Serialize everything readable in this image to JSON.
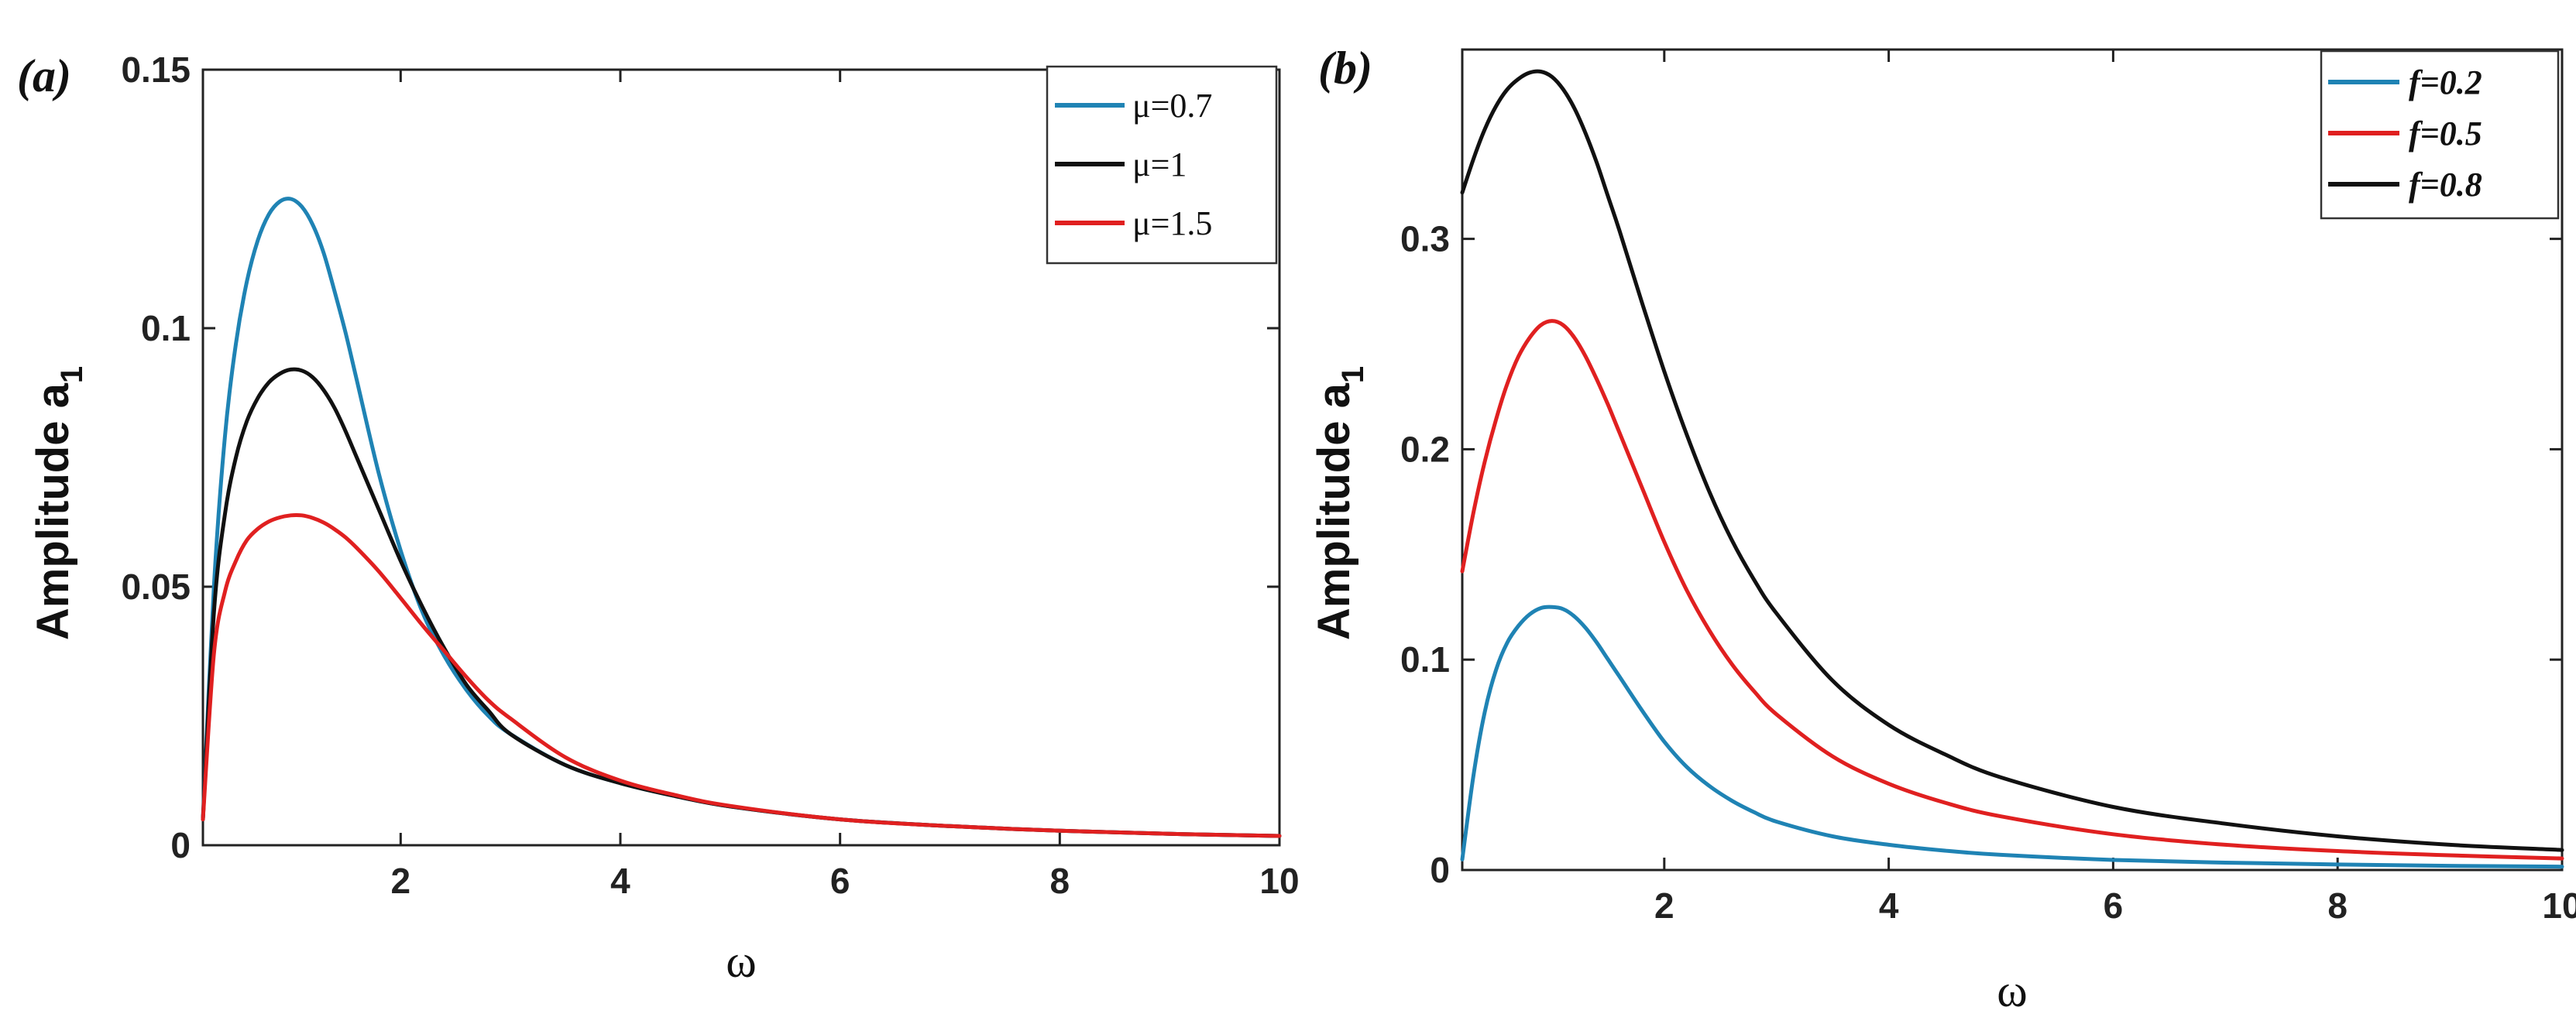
{
  "chart_data": [
    {
      "type": "line",
      "panel_label": "(a)",
      "xlabel": "ω",
      "ylabel": "Amplitude a",
      "ylabel_sub": "1",
      "xlim": [
        0.2,
        10
      ],
      "ylim": [
        0,
        0.15
      ],
      "xticks": [
        2,
        4,
        6,
        8,
        10
      ],
      "xtick_labels": [
        "2",
        "4",
        "6",
        "8",
        "10"
      ],
      "yticks": [
        0,
        0.05,
        0.1,
        0.15
      ],
      "ytick_labels": [
        "0",
        "0.05",
        "0.1",
        "0.15"
      ],
      "legend_position": "top-right",
      "x": [
        0.2,
        0.3,
        0.4,
        0.5,
        0.6,
        0.7,
        0.8,
        0.9,
        1.0,
        1.1,
        1.2,
        1.3,
        1.4,
        1.5,
        1.6,
        1.8,
        2.0,
        2.2,
        2.4,
        2.6,
        2.8,
        3.0,
        3.5,
        4.0,
        4.5,
        5.0,
        6.0,
        7.0,
        8.0,
        9.0,
        10.0
      ],
      "series": [
        {
          "name": "μ=0.7",
          "color": "#1f83b4",
          "values": [
            0.005,
            0.05,
            0.079,
            0.097,
            0.109,
            0.117,
            0.122,
            0.1245,
            0.125,
            0.1235,
            0.12,
            0.1145,
            0.107,
            0.099,
            0.09,
            0.072,
            0.057,
            0.045,
            0.0365,
            0.03,
            0.025,
            0.0215,
            0.0155,
            0.012,
            0.0095,
            0.0075,
            0.005,
            0.0037,
            0.0028,
            0.0022,
            0.0018
          ]
        },
        {
          "name": "μ=1",
          "color": "#111111",
          "values": [
            0.005,
            0.045,
            0.064,
            0.075,
            0.082,
            0.0865,
            0.0895,
            0.0912,
            0.092,
            0.0918,
            0.0905,
            0.088,
            0.0845,
            0.08,
            0.075,
            0.065,
            0.055,
            0.046,
            0.038,
            0.031,
            0.026,
            0.0215,
            0.0155,
            0.012,
            0.0095,
            0.0075,
            0.005,
            0.0037,
            0.0028,
            0.0022,
            0.0018
          ]
        },
        {
          "name": "μ=1.5",
          "color": "#e02020",
          "values": [
            0.005,
            0.037,
            0.049,
            0.055,
            0.059,
            0.0612,
            0.0626,
            0.0634,
            0.0638,
            0.0638,
            0.0633,
            0.0624,
            0.0611,
            0.0595,
            0.0575,
            0.053,
            0.0478,
            0.0425,
            0.0375,
            0.0325,
            0.028,
            0.0245,
            0.017,
            0.0125,
            0.0097,
            0.0076,
            0.005,
            0.0037,
            0.0028,
            0.0022,
            0.0018
          ]
        }
      ]
    },
    {
      "type": "line",
      "panel_label": "(b)",
      "xlabel": "ω",
      "ylabel": "Amplitude a",
      "ylabel_sub": "1",
      "xlim": [
        0.2,
        10
      ],
      "ylim": [
        0,
        0.39
      ],
      "xticks": [
        2,
        4,
        6,
        8,
        10
      ],
      "xtick_labels": [
        "2",
        "4",
        "6",
        "8",
        "10"
      ],
      "yticks": [
        0,
        0.1,
        0.2,
        0.3
      ],
      "ytick_labels": [
        "0",
        "0.1",
        "0.2",
        "0.3"
      ],
      "legend_position": "top-right",
      "x": [
        0.2,
        0.3,
        0.4,
        0.5,
        0.6,
        0.7,
        0.8,
        0.9,
        1.0,
        1.1,
        1.2,
        1.3,
        1.4,
        1.5,
        1.6,
        1.8,
        2.0,
        2.2,
        2.4,
        2.6,
        2.8,
        3.0,
        3.5,
        4.0,
        4.5,
        5.0,
        6.0,
        7.0,
        8.0,
        9.0,
        10.0
      ],
      "series": [
        {
          "name": "f=0.2",
          "color": "#1f83b4",
          "values": [
            0.005,
            0.045,
            0.075,
            0.095,
            0.108,
            0.116,
            0.1215,
            0.1245,
            0.125,
            0.124,
            0.1205,
            0.115,
            0.108,
            0.1,
            0.092,
            0.076,
            0.061,
            0.049,
            0.04,
            0.033,
            0.0275,
            0.023,
            0.016,
            0.012,
            0.0092,
            0.0072,
            0.0048,
            0.0035,
            0.0026,
            0.002,
            0.0016
          ]
        },
        {
          "name": "f=0.5",
          "color": "#e02020",
          "values": [
            0.142,
            0.17,
            0.194,
            0.214,
            0.231,
            0.244,
            0.253,
            0.259,
            0.261,
            0.259,
            0.253,
            0.244,
            0.233,
            0.221,
            0.208,
            0.182,
            0.156,
            0.133,
            0.114,
            0.098,
            0.085,
            0.074,
            0.054,
            0.041,
            0.032,
            0.0255,
            0.017,
            0.012,
            0.009,
            0.007,
            0.0055
          ]
        },
        {
          "name": "f=0.8",
          "color": "#111111",
          "values": [
            0.322,
            0.338,
            0.352,
            0.363,
            0.371,
            0.376,
            0.379,
            0.3795,
            0.377,
            0.371,
            0.362,
            0.35,
            0.336,
            0.32,
            0.304,
            0.27,
            0.237,
            0.207,
            0.18,
            0.157,
            0.138,
            0.122,
            0.09,
            0.069,
            0.055,
            0.044,
            0.03,
            0.022,
            0.016,
            0.012,
            0.0095
          ]
        }
      ]
    }
  ]
}
